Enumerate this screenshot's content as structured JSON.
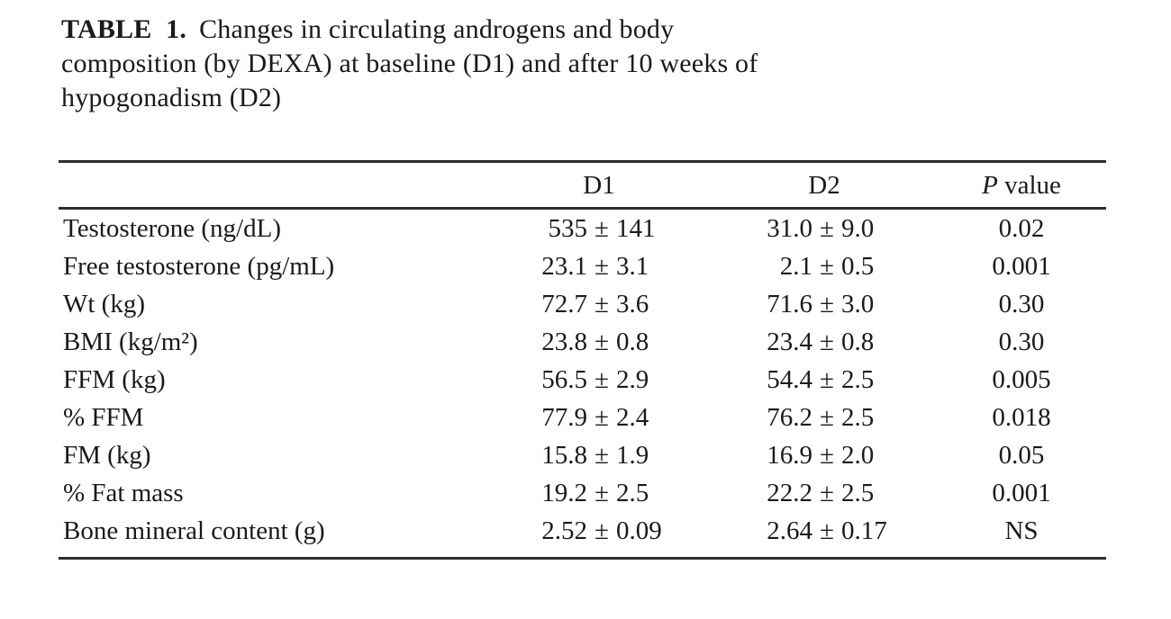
{
  "title": {
    "label": "TABLE 1.",
    "lines": [
      "Changes in circulating androgens and body",
      "composition (by DEXA) at baseline (D1) and after 10 weeks of",
      "hypogonadism (D2)"
    ]
  },
  "table": {
    "plus_minus": "±",
    "headers": {
      "parameter": "",
      "d1": "D1",
      "d2": "D2",
      "p_italic": "P",
      "p_rest": " value"
    },
    "rows": [
      {
        "label": "Testosterone (ng/dL)",
        "d1_value": "535",
        "d1_err": "141",
        "d2_value": "31.0",
        "d2_err": "9.0",
        "p": "0.02"
      },
      {
        "label": "Free testosterone (pg/mL)",
        "d1_value": "23.1",
        "d1_err": "3.1",
        "d2_value": "2.1",
        "d2_err": "0.5",
        "p": "0.001"
      },
      {
        "label": "Wt (kg)",
        "d1_value": "72.7",
        "d1_err": "3.6",
        "d2_value": "71.6",
        "d2_err": "3.0",
        "p": "0.30"
      },
      {
        "label": "BMI (kg/m²)",
        "d1_value": "23.8",
        "d1_err": "0.8",
        "d2_value": "23.4",
        "d2_err": "0.8",
        "p": "0.30"
      },
      {
        "label": "FFM (kg)",
        "d1_value": "56.5",
        "d1_err": "2.9",
        "d2_value": "54.4",
        "d2_err": "2.5",
        "p": "0.005"
      },
      {
        "label": "% FFM",
        "d1_value": "77.9",
        "d1_err": "2.4",
        "d2_value": "76.2",
        "d2_err": "2.5",
        "p": "0.018"
      },
      {
        "label": "FM (kg)",
        "d1_value": "15.8",
        "d1_err": "1.9",
        "d2_value": "16.9",
        "d2_err": "2.0",
        "p": "0.05"
      },
      {
        "label": "% Fat mass",
        "d1_value": "19.2",
        "d1_err": "2.5",
        "d2_value": "22.2",
        "d2_err": "2.5",
        "p": "0.001"
      },
      {
        "label": "Bone mineral content (g)",
        "d1_value": "2.52",
        "d1_err": "0.09",
        "d2_value": "2.64",
        "d2_err": "0.17",
        "p": "NS"
      }
    ],
    "colors": {
      "text": "#1a1a1a",
      "rule": "#2e2e2e",
      "background": "#ffffff"
    }
  }
}
